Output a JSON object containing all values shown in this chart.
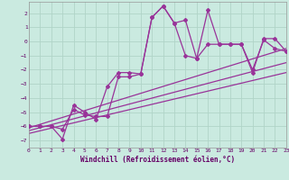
{
  "xlabel": "Windchill (Refroidissement éolien,°C)",
  "background_color": "#caeae0",
  "grid_color": "#b0d4c8",
  "line_color": "#993399",
  "xlim": [
    0,
    23
  ],
  "ylim": [
    -7.5,
    2.8
  ],
  "xtick_vals": [
    0,
    1,
    2,
    3,
    4,
    5,
    6,
    7,
    8,
    9,
    10,
    11,
    12,
    13,
    14,
    15,
    16,
    17,
    18,
    19,
    20,
    21,
    22,
    23
  ],
  "ytick_vals": [
    -7,
    -6,
    -5,
    -4,
    -3,
    -2,
    -1,
    0,
    1,
    2
  ],
  "series1_x": [
    0,
    1,
    2,
    3,
    4,
    5,
    6,
    7,
    8,
    9,
    10,
    11,
    12,
    13,
    14,
    15,
    16,
    17,
    18,
    19,
    20,
    21,
    22,
    23
  ],
  "series1_y": [
    -6.0,
    -6.0,
    -6.0,
    -6.9,
    -4.5,
    -5.0,
    -5.5,
    -3.2,
    -2.2,
    -2.2,
    -2.3,
    1.7,
    2.5,
    1.3,
    1.5,
    -1.2,
    2.2,
    -0.2,
    -0.2,
    -0.2,
    -2.2,
    0.2,
    0.2,
    -0.7
  ],
  "series2_x": [
    0,
    1,
    2,
    3,
    4,
    5,
    6,
    7,
    8,
    9,
    10,
    11,
    12,
    13,
    14,
    15,
    16,
    17,
    18,
    19,
    20,
    21,
    22,
    23
  ],
  "series2_y": [
    -6.0,
    -6.0,
    -6.0,
    -6.2,
    -4.8,
    -5.2,
    -5.3,
    -5.3,
    -2.5,
    -2.5,
    -2.3,
    1.7,
    2.5,
    1.3,
    -1.0,
    -1.2,
    -0.2,
    -0.2,
    -0.2,
    -0.2,
    -2.0,
    0.1,
    -0.5,
    -0.7
  ],
  "trend1_x": [
    0,
    23
  ],
  "trend1_y": [
    -6.1,
    -0.5
  ],
  "trend2_x": [
    0,
    23
  ],
  "trend2_y": [
    -6.3,
    -1.5
  ],
  "trend3_x": [
    0,
    23
  ],
  "trend3_y": [
    -6.5,
    -2.2
  ]
}
